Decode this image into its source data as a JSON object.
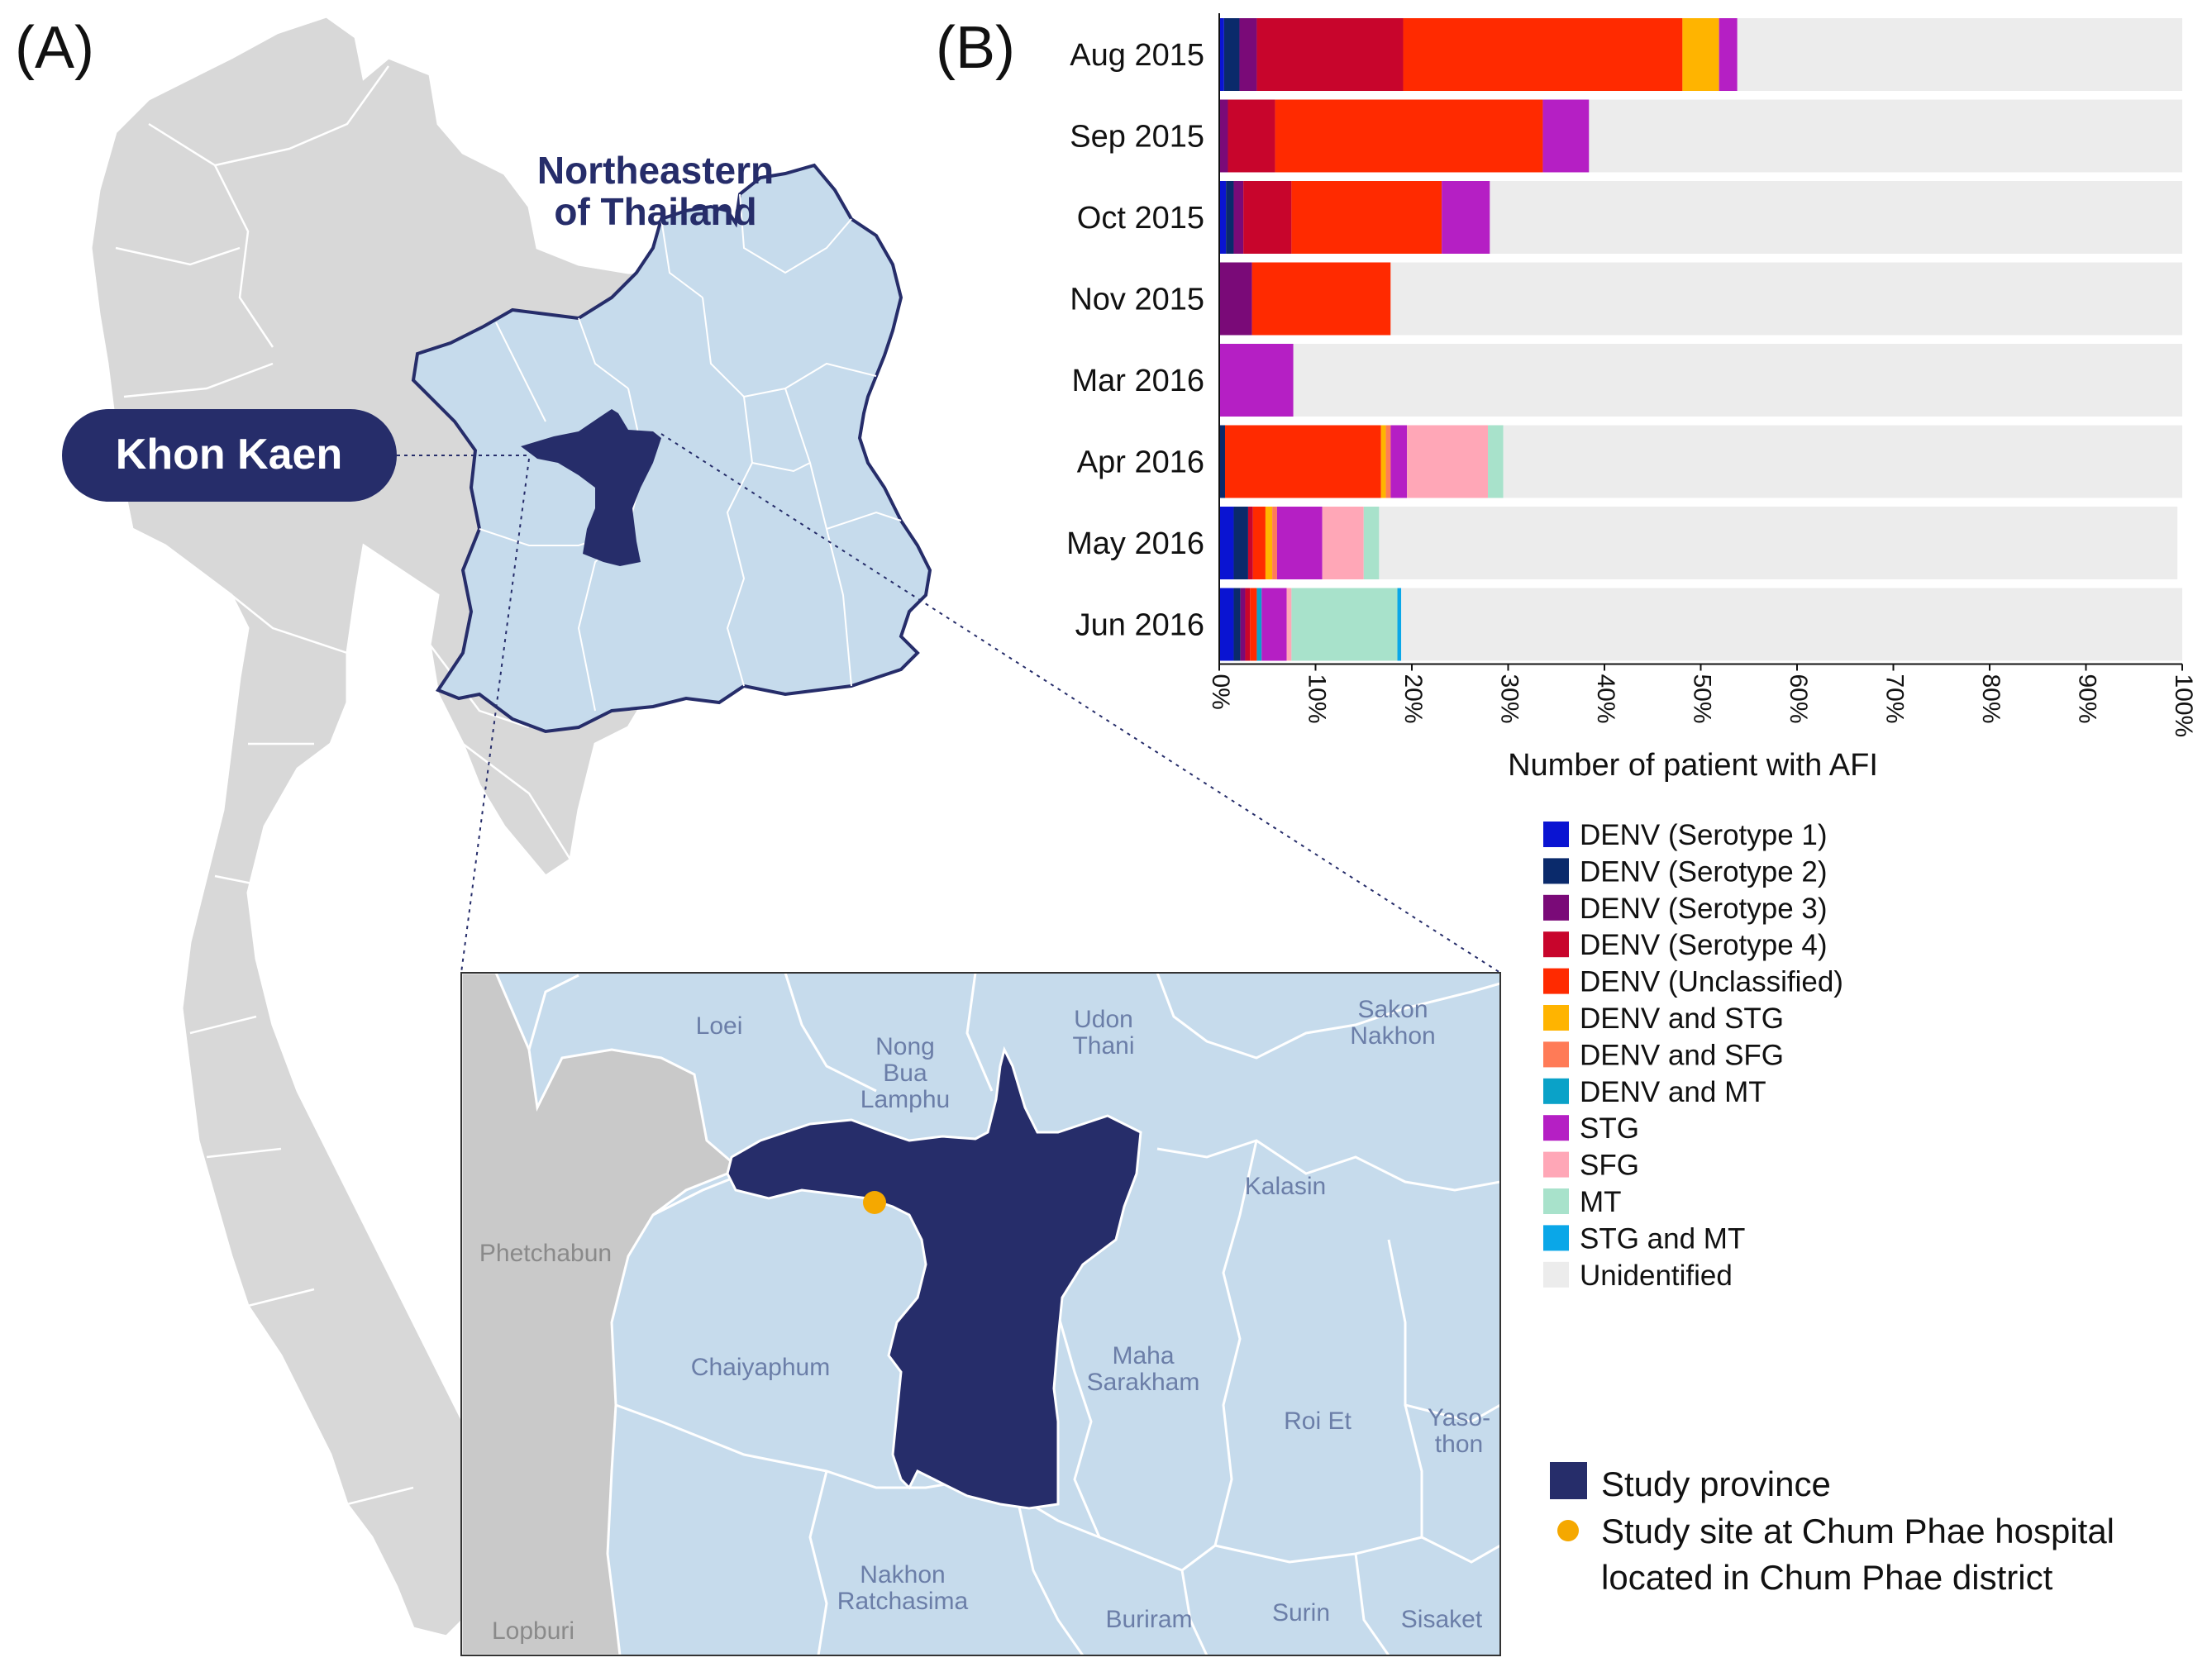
{
  "panel_a": {
    "label": "(A)",
    "region_title_line1": "Northeastern",
    "region_title_line2": "of Thailand",
    "province_callout": "Khon Kaen",
    "provinces": {
      "loei": "Loei",
      "nong_bua_1": "Nong",
      "nong_bua_2": "Bua",
      "nong_bua_3": "Lamphu",
      "udon_1": "Udon",
      "udon_2": "Thani",
      "sakon_1": "Sakon",
      "sakon_2": "Nakhon",
      "kalasin": "Kalasin",
      "phetchabun": "Phetchabun",
      "chaiyaphum": "Chaiyaphum",
      "maha_1": "Maha",
      "maha_2": "Sarakham",
      "roi_et": "Roi Et",
      "yaso_1": "Yaso-",
      "yaso_2": "thon",
      "nakhon_r_1": "Nakhon",
      "nakhon_r_2": "Ratchasima",
      "buriram": "Buriram",
      "surin": "Surin",
      "sisaket": "Sisaket",
      "lopburi": "Lopburi"
    },
    "legend": {
      "study_province": "Study province",
      "study_site_line1": "Study site at Chum Phae hospital",
      "study_site_line2": "located in Chum Phae district"
    },
    "colors": {
      "country": "#d8d8d8",
      "northeast": "#c6dbec",
      "province": "#262d6a",
      "site": "#f5a800",
      "inset_grey": "#c9c9c9"
    }
  },
  "panel_b": {
    "label": "(B)"
  },
  "chart_data": {
    "type": "bar",
    "orientation": "horizontal",
    "stacked": true,
    "xlabel": "Number of patient with AFI",
    "xlim": [
      0,
      100
    ],
    "x_ticks": [
      "0%",
      "10%",
      "20%",
      "30%",
      "40%",
      "50%",
      "60%",
      "70%",
      "80%",
      "90%",
      "100%"
    ],
    "categories": [
      "Aug 2015",
      "Sep 2015",
      "Oct 2015",
      "Nov 2015",
      "Mar 2016",
      "Apr 2016",
      "May 2016",
      "Jun 2016"
    ],
    "series": [
      {
        "name": "DENV (Serotype 1)",
        "color": "#0a14d2",
        "values": [
          0.5,
          0,
          0.7,
          0,
          0,
          0,
          1.5,
          1.5
        ]
      },
      {
        "name": "DENV (Serotype 2)",
        "color": "#0a2a6b",
        "values": [
          1.6,
          0,
          0.8,
          0,
          0,
          0.6,
          1.5,
          0.7
        ]
      },
      {
        "name": "DENV (Serotype 3)",
        "color": "#7a0a78",
        "values": [
          1.8,
          0.9,
          1.0,
          3.4,
          0,
          0,
          0,
          0.5
        ]
      },
      {
        "name": "DENV (Serotype 4)",
        "color": "#c8052c",
        "values": [
          15.2,
          4.9,
          5.0,
          0,
          0,
          0,
          0.5,
          0.5
        ]
      },
      {
        "name": "DENV (Unclassified)",
        "color": "#ff2a00",
        "values": [
          29.0,
          27.8,
          15.6,
          14.4,
          0,
          16.2,
          1.3,
          0.7
        ]
      },
      {
        "name": "DENV and STG",
        "color": "#ffb400",
        "values": [
          3.8,
          0,
          0,
          0,
          0,
          0.5,
          0.7,
          0
        ]
      },
      {
        "name": "DENV and SFG",
        "color": "#ff7b57",
        "values": [
          0,
          0,
          0,
          0,
          0,
          0.5,
          0.5,
          0
        ]
      },
      {
        "name": "DENV and MT",
        "color": "#0aa2c8",
        "values": [
          0,
          0,
          0,
          0,
          0,
          0,
          0,
          0.5
        ]
      },
      {
        "name": "STG",
        "color": "#b51fc4",
        "values": [
          1.9,
          4.8,
          5.0,
          0,
          7.7,
          1.7,
          4.7,
          2.6
        ]
      },
      {
        "name": "SFG",
        "color": "#ffa7b7",
        "values": [
          0,
          0,
          0,
          0,
          0,
          8.4,
          4.3,
          0.5
        ]
      },
      {
        "name": "MT",
        "color": "#a8e2cb",
        "values": [
          0,
          0,
          0,
          0,
          0,
          1.6,
          1.6,
          11.0
        ]
      },
      {
        "name": "STG and MT",
        "color": "#0aa7e8",
        "values": [
          0,
          0,
          0,
          0,
          0,
          0,
          0,
          0.4
        ]
      },
      {
        "name": "Unidentified",
        "color": "#ececec",
        "values": [
          46.2,
          61.6,
          71.9,
          82.2,
          92.3,
          70.5,
          82.9,
          81.1
        ]
      }
    ]
  }
}
